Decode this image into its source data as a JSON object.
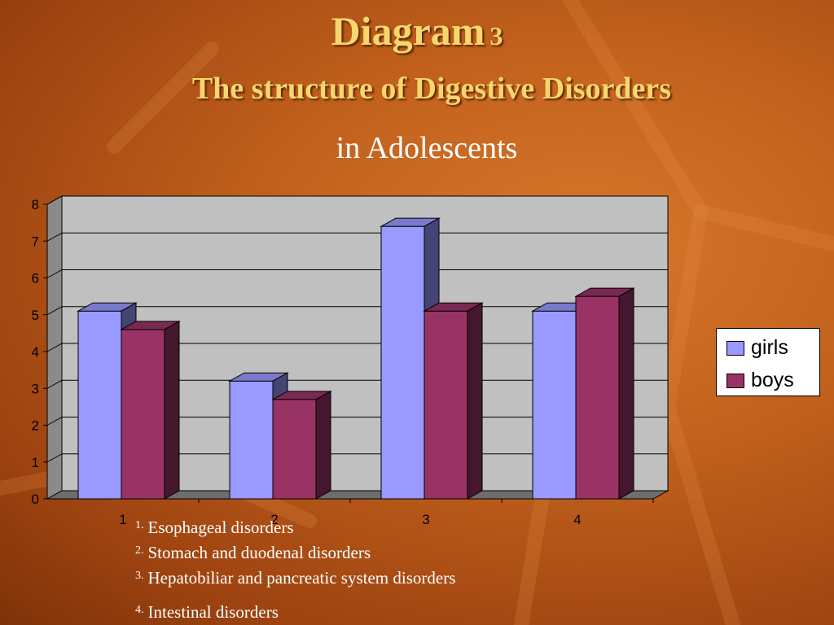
{
  "title": {
    "main": "Diagram",
    "number": "3",
    "line2": "The structure of  Digestive Disorders",
    "line3": "in Adolescents"
  },
  "chart_data": {
    "type": "bar",
    "categories": [
      "1",
      "2",
      "3",
      "4"
    ],
    "series": [
      {
        "name": "girls",
        "values": [
          5.1,
          3.2,
          7.4,
          5.1
        ],
        "color": "#9999ff"
      },
      {
        "name": "boys",
        "values": [
          4.6,
          2.7,
          5.1,
          5.5
        ],
        "color": "#993366"
      }
    ],
    "ylim": [
      0,
      8
    ],
    "yticks": [
      "0",
      "1",
      "2",
      "3",
      "4",
      "5",
      "6",
      "7",
      "8"
    ],
    "grid": true,
    "legend_position": "right",
    "plot_background": "#c0c0c0",
    "xlabel": "",
    "ylabel": ""
  },
  "footnotes": [
    {
      "n": "1.",
      "text": "Esophageal disorders"
    },
    {
      "n": "2.",
      "text": "Stomach and duodenal disorders"
    },
    {
      "n": "3.",
      "text": "Hepatobiliar and pancreatic system disorders"
    },
    {
      "n": "4.",
      "text": "Intestinal disorders"
    }
  ]
}
